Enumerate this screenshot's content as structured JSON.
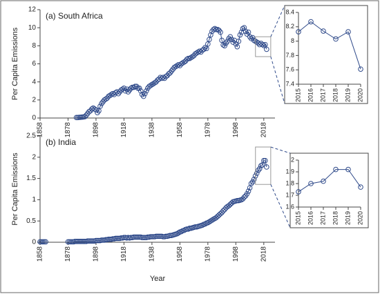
{
  "chart_data": [
    {
      "type": "line",
      "label": "(a) South Africa",
      "ylabel": "Per Capita Emissions",
      "color": "#2f4a8a",
      "xlim": [
        1858,
        2026
      ],
      "xticks": [
        1858,
        1878,
        1898,
        1918,
        1938,
        1958,
        1978,
        1998,
        2018
      ],
      "ylim": [
        0,
        12
      ],
      "yticks": [
        0,
        2,
        4,
        6,
        8,
        10,
        12
      ],
      "series": [
        {
          "x": [
            1884,
            1885,
            1886,
            1887,
            1888,
            1889,
            1890,
            1891,
            1892,
            1893,
            1894,
            1895,
            1896,
            1897,
            1898,
            1899,
            1900,
            1901,
            1902,
            1903,
            1904,
            1905,
            1906,
            1907,
            1908,
            1909,
            1910,
            1911,
            1912,
            1913,
            1914,
            1915,
            1916,
            1917,
            1918,
            1919,
            1920,
            1921,
            1922,
            1923,
            1924,
            1925,
            1926,
            1927,
            1928,
            1929,
            1930,
            1931,
            1932,
            1933,
            1934,
            1935,
            1936,
            1937,
            1938,
            1939,
            1940,
            1941,
            1942,
            1943,
            1944,
            1945,
            1946,
            1947,
            1948,
            1949,
            1950,
            1951,
            1952,
            1953,
            1954,
            1955,
            1956,
            1957,
            1958,
            1959,
            1960,
            1961,
            1962,
            1963,
            1964,
            1965,
            1966,
            1967,
            1968,
            1969,
            1970,
            1971,
            1972,
            1973,
            1974,
            1975,
            1976,
            1977,
            1978,
            1979,
            1980,
            1981,
            1982,
            1983,
            1984,
            1985,
            1986,
            1987,
            1988,
            1989,
            1990,
            1991,
            1992,
            1993,
            1994,
            1995,
            1996,
            1997,
            1998,
            1999,
            2000,
            2001,
            2002,
            2003,
            2004,
            2005,
            2006,
            2007,
            2008,
            2009,
            2010,
            2011,
            2012,
            2013,
            2014,
            2015,
            2016,
            2017,
            2018,
            2019,
            2020
          ],
          "values": [
            0.05,
            0.05,
            0.07,
            0.08,
            0.1,
            0.12,
            0.15,
            0.3,
            0.5,
            0.7,
            0.8,
            1.0,
            1.1,
            1.0,
            0.9,
            0.6,
            0.8,
            1.3,
            1.6,
            1.8,
            2.0,
            2.1,
            2.2,
            2.4,
            2.5,
            2.6,
            2.7,
            2.6,
            2.8,
            2.9,
            2.7,
            2.9,
            3.1,
            3.2,
            3.3,
            3.0,
            3.2,
            2.9,
            3.1,
            3.3,
            3.4,
            3.4,
            3.5,
            3.5,
            3.3,
            3.3,
            3.0,
            2.6,
            2.4,
            2.7,
            3.0,
            3.3,
            3.5,
            3.6,
            3.7,
            3.8,
            3.9,
            4.0,
            4.2,
            4.3,
            4.5,
            4.4,
            4.5,
            4.4,
            4.6,
            4.7,
            4.9,
            5.0,
            5.2,
            5.4,
            5.6,
            5.7,
            5.8,
            5.9,
            5.8,
            6.0,
            6.1,
            6.2,
            6.3,
            6.5,
            6.6,
            6.6,
            6.7,
            6.8,
            6.9,
            7.1,
            7.2,
            7.3,
            7.4,
            7.3,
            7.5,
            7.6,
            7.8,
            7.7,
            8.2,
            8.7,
            9.2,
            9.6,
            9.8,
            9.9,
            9.8,
            9.8,
            9.7,
            9.5,
            8.6,
            8.1,
            8.0,
            8.3,
            8.5,
            8.8,
            9.0,
            8.7,
            8.4,
            8.6,
            8.2,
            7.9,
            8.5,
            9.2,
            9.5,
            9.9,
            10.0,
            9.6,
            9.3,
            9.5,
            9.0,
            8.8,
            8.9,
            8.6,
            8.5,
            8.4,
            8.3,
            8.13,
            8.27,
            8.14,
            8.03,
            8.13,
            7.61
          ]
        }
      ],
      "inset": {
        "xlim": [
          2015,
          2020
        ],
        "xticks": [
          2015,
          2016,
          2017,
          2018,
          2019,
          2020
        ],
        "ylim": [
          7.4,
          8.4
        ],
        "yticks": [
          7.4,
          7.6,
          7.8,
          8,
          8.2,
          8.4
        ]
      }
    },
    {
      "type": "line",
      "label": "(b) India",
      "ylabel": "Per Capita Emissions",
      "xlabel": "Year",
      "color": "#2f4a8a",
      "xlim": [
        1858,
        2026
      ],
      "xticks": [
        1858,
        1878,
        1898,
        1918,
        1938,
        1958,
        1978,
        1998,
        2018
      ],
      "ylim": [
        0,
        2.5
      ],
      "yticks": [
        0,
        0.5,
        1,
        1.5,
        2,
        2.5
      ],
      "series": [
        {
          "x": [
            1858,
            1859,
            1860,
            1861,
            1862,
            1878,
            1879,
            1880,
            1881,
            1882,
            1883,
            1884,
            1885,
            1886,
            1887,
            1888,
            1889,
            1890,
            1891,
            1892,
            1893,
            1894,
            1895,
            1896,
            1897,
            1898,
            1899,
            1900,
            1901,
            1902,
            1903,
            1904,
            1905,
            1906,
            1907,
            1908,
            1909,
            1910,
            1911,
            1912,
            1913,
            1914,
            1915,
            1916,
            1917,
            1918,
            1919,
            1920,
            1921,
            1922,
            1923,
            1924,
            1925,
            1926,
            1927,
            1928,
            1929,
            1930,
            1931,
            1932,
            1933,
            1934,
            1935,
            1936,
            1937,
            1938,
            1939,
            1940,
            1941,
            1942,
            1943,
            1944,
            1945,
            1946,
            1947,
            1948,
            1949,
            1950,
            1951,
            1952,
            1953,
            1954,
            1955,
            1956,
            1957,
            1958,
            1959,
            1960,
            1961,
            1962,
            1963,
            1964,
            1965,
            1966,
            1967,
            1968,
            1969,
            1970,
            1971,
            1972,
            1973,
            1974,
            1975,
            1976,
            1977,
            1978,
            1979,
            1980,
            1981,
            1982,
            1983,
            1984,
            1985,
            1986,
            1987,
            1988,
            1989,
            1990,
            1991,
            1992,
            1993,
            1994,
            1995,
            1996,
            1997,
            1998,
            1999,
            2000,
            2001,
            2002,
            2003,
            2004,
            2005,
            2006,
            2007,
            2008,
            2009,
            2010,
            2011,
            2012,
            2013,
            2014,
            2015,
            2016,
            2017,
            2018,
            2019,
            2020
          ],
          "values": [
            0.01,
            0.01,
            0.01,
            0.01,
            0.01,
            0.01,
            0.01,
            0.01,
            0.01,
            0.01,
            0.02,
            0.02,
            0.02,
            0.02,
            0.02,
            0.02,
            0.02,
            0.02,
            0.02,
            0.03,
            0.03,
            0.03,
            0.03,
            0.03,
            0.03,
            0.04,
            0.04,
            0.04,
            0.04,
            0.05,
            0.05,
            0.05,
            0.06,
            0.06,
            0.07,
            0.07,
            0.07,
            0.08,
            0.08,
            0.09,
            0.09,
            0.09,
            0.09,
            0.1,
            0.1,
            0.11,
            0.11,
            0.1,
            0.11,
            0.1,
            0.11,
            0.11,
            0.12,
            0.12,
            0.12,
            0.12,
            0.12,
            0.12,
            0.11,
            0.11,
            0.11,
            0.11,
            0.12,
            0.12,
            0.13,
            0.13,
            0.13,
            0.13,
            0.14,
            0.14,
            0.14,
            0.14,
            0.14,
            0.13,
            0.13,
            0.14,
            0.14,
            0.15,
            0.16,
            0.16,
            0.17,
            0.18,
            0.19,
            0.2,
            0.22,
            0.24,
            0.25,
            0.27,
            0.28,
            0.3,
            0.31,
            0.31,
            0.33,
            0.33,
            0.34,
            0.35,
            0.36,
            0.36,
            0.37,
            0.38,
            0.39,
            0.4,
            0.42,
            0.43,
            0.45,
            0.46,
            0.48,
            0.5,
            0.52,
            0.54,
            0.56,
            0.58,
            0.61,
            0.64,
            0.67,
            0.7,
            0.74,
            0.77,
            0.81,
            0.84,
            0.86,
            0.89,
            0.92,
            0.95,
            0.96,
            0.97,
            0.98,
            0.98,
            0.99,
            1.0,
            1.02,
            1.06,
            1.09,
            1.14,
            1.2,
            1.28,
            1.38,
            1.42,
            1.48,
            1.56,
            1.62,
            1.69,
            1.73,
            1.8,
            1.82,
            1.92,
            1.92,
            1.77
          ]
        }
      ],
      "inset": {
        "xlim": [
          2015,
          2020
        ],
        "xticks": [
          2015,
          2016,
          2017,
          2018,
          2019,
          2020
        ],
        "ylim": [
          1.6,
          2
        ],
        "yticks": [
          1.6,
          1.7,
          1.8,
          1.9,
          2
        ]
      }
    }
  ]
}
